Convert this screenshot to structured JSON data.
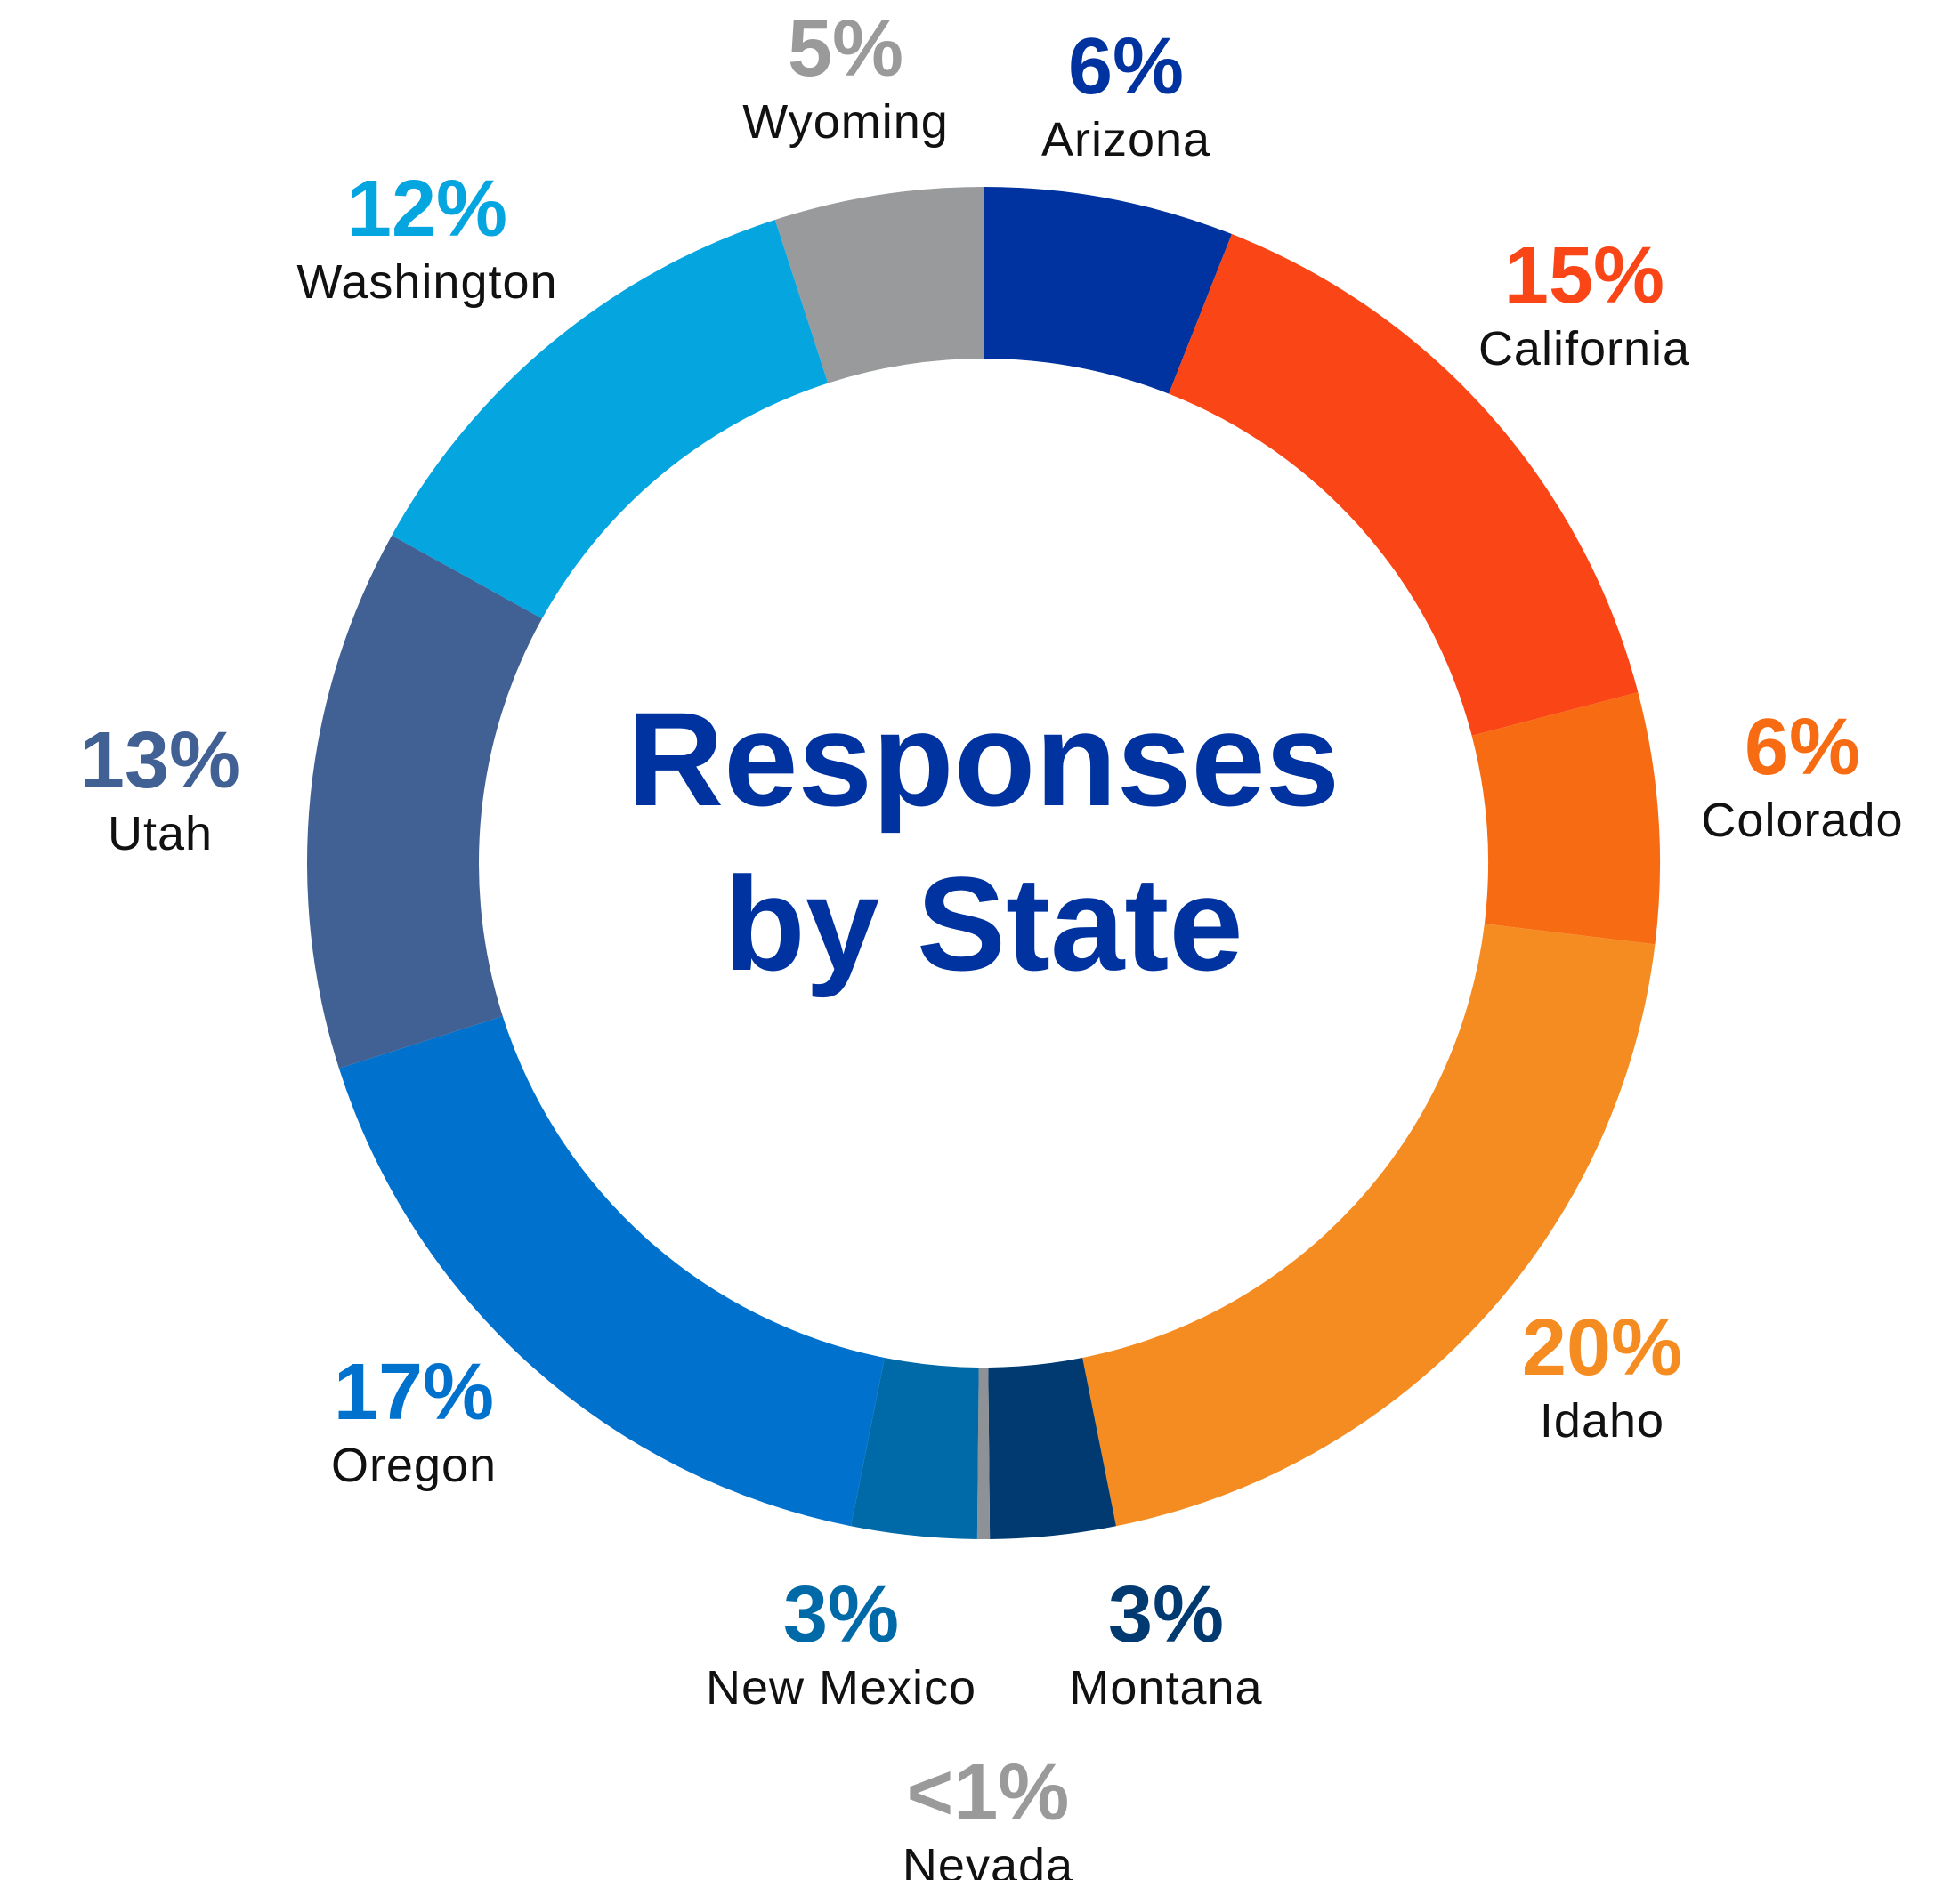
{
  "chart_data": {
    "type": "pie",
    "variant": "donut",
    "title_line1": "Responses",
    "title_line2": "by State",
    "title_color": "#0033A0",
    "slices": [
      {
        "name": "Arizona",
        "pct_label": "6%",
        "value": 6,
        "color": "#0033A0",
        "label_color": "#0033A0"
      },
      {
        "name": "California",
        "pct_label": "15%",
        "value": 15,
        "color": "#FA4616",
        "label_color": "#FA4616"
      },
      {
        "name": "Colorado",
        "pct_label": "6%",
        "value": 6,
        "color": "#F76B12",
        "label_color": "#F76B12"
      },
      {
        "name": "Idaho",
        "pct_label": "20%",
        "value": 20,
        "color": "#F58C21",
        "label_color": "#F58C21"
      },
      {
        "name": "Montana",
        "pct_label": "3%",
        "value": 3,
        "color": "#003A70",
        "label_color": "#003A70"
      },
      {
        "name": "Nevada",
        "pct_label": "<1%",
        "value": 0.3,
        "color": "#8E9296",
        "label_color": "#9A9A9A"
      },
      {
        "name": "New Mexico",
        "pct_label": "3%",
        "value": 3,
        "color": "#0069A8",
        "label_color": "#0069A8"
      },
      {
        "name": "Oregon",
        "pct_label": "17%",
        "value": 17,
        "color": "#0072CE",
        "label_color": "#0072CE"
      },
      {
        "name": "Utah",
        "pct_label": "13%",
        "value": 13,
        "color": "#416094",
        "label_color": "#416094"
      },
      {
        "name": "Washington",
        "pct_label": "12%",
        "value": 12,
        "color": "#05A5E0",
        "label_color": "#05A5E0"
      },
      {
        "name": "Wyoming",
        "pct_label": "5%",
        "value": 5,
        "color": "#989A9C",
        "label_color": "#9A9A9A"
      }
    ]
  }
}
